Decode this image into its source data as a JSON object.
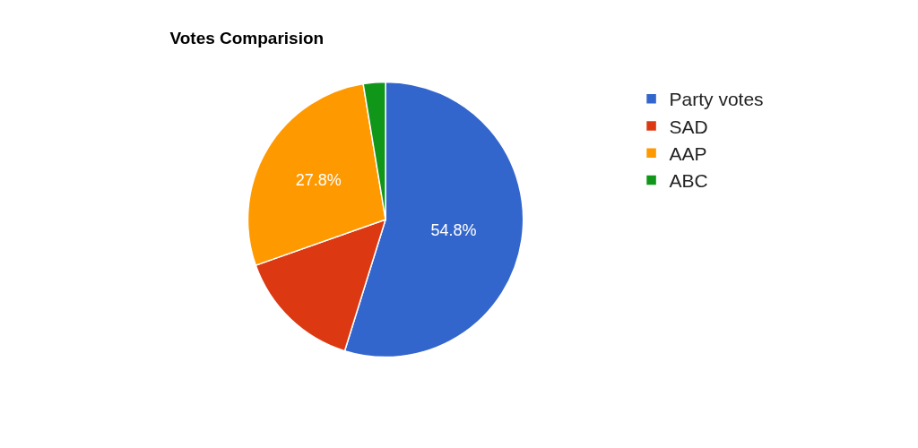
{
  "chart_data": {
    "type": "pie",
    "title": "Votes Comparision",
    "categories": [
      "Party votes",
      "SAD",
      "AAP",
      "ABC"
    ],
    "values": [
      54.8,
      14.8,
      27.8,
      2.6
    ],
    "colors": [
      "#3366cc",
      "#dc3912",
      "#ff9900",
      "#109618"
    ],
    "value_labels": [
      "54.8%",
      null,
      "27.8%",
      null
    ],
    "legend": "right"
  }
}
